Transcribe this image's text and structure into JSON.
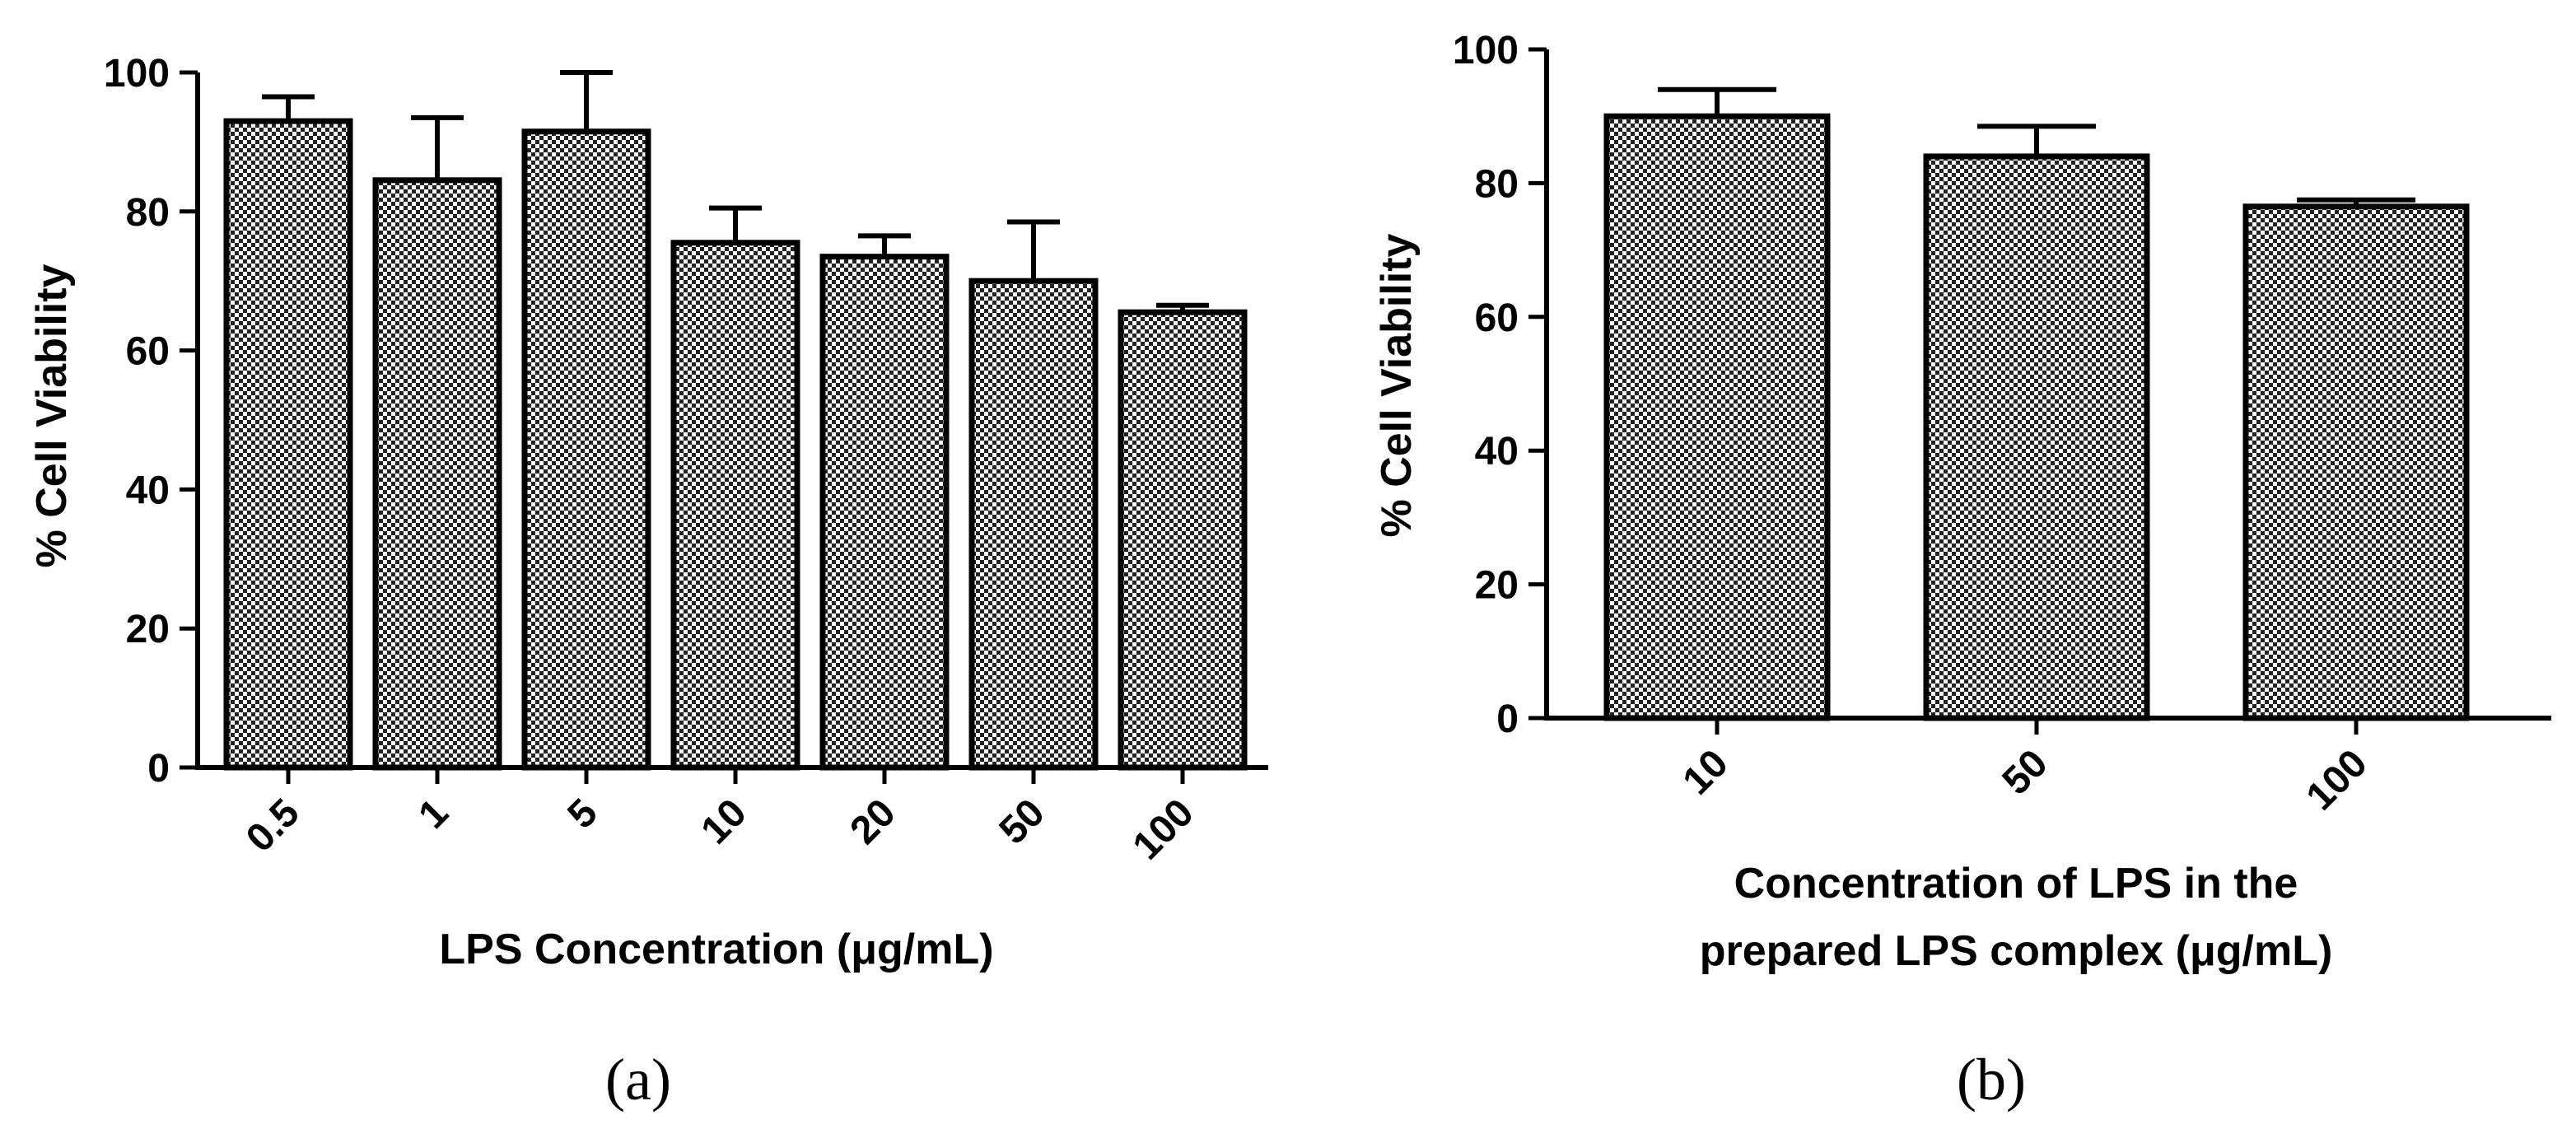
{
  "chart_data": [
    {
      "type": "bar",
      "panel_label": "(a)",
      "categories": [
        "0.5",
        "1",
        "5",
        "10",
        "20",
        "50",
        "100"
      ],
      "values": [
        93,
        84.5,
        91.5,
        75.5,
        73.5,
        70,
        65.5
      ],
      "errors": [
        3.5,
        9,
        8.5,
        5,
        3,
        8.5,
        1
      ],
      "xlabel": "LPS Concentration (μg/mL)",
      "ylabel": "% Cell Viability",
      "ylim": [
        0,
        100
      ],
      "yticks": [
        "0",
        "20",
        "40",
        "60",
        "80",
        "100"
      ]
    },
    {
      "type": "bar",
      "panel_label": "(b)",
      "categories": [
        "10",
        "50",
        "100"
      ],
      "values": [
        90,
        84,
        76.5
      ],
      "errors": [
        4,
        4.5,
        1
      ],
      "xlabel_lines": [
        "Concentration of LPS in the",
        "prepared LPS complex (μg/mL)"
      ],
      "ylabel": "% Cell Viability",
      "ylim": [
        0,
        100
      ],
      "yticks": [
        "0",
        "20",
        "40",
        "60",
        "80",
        "100"
      ]
    }
  ]
}
